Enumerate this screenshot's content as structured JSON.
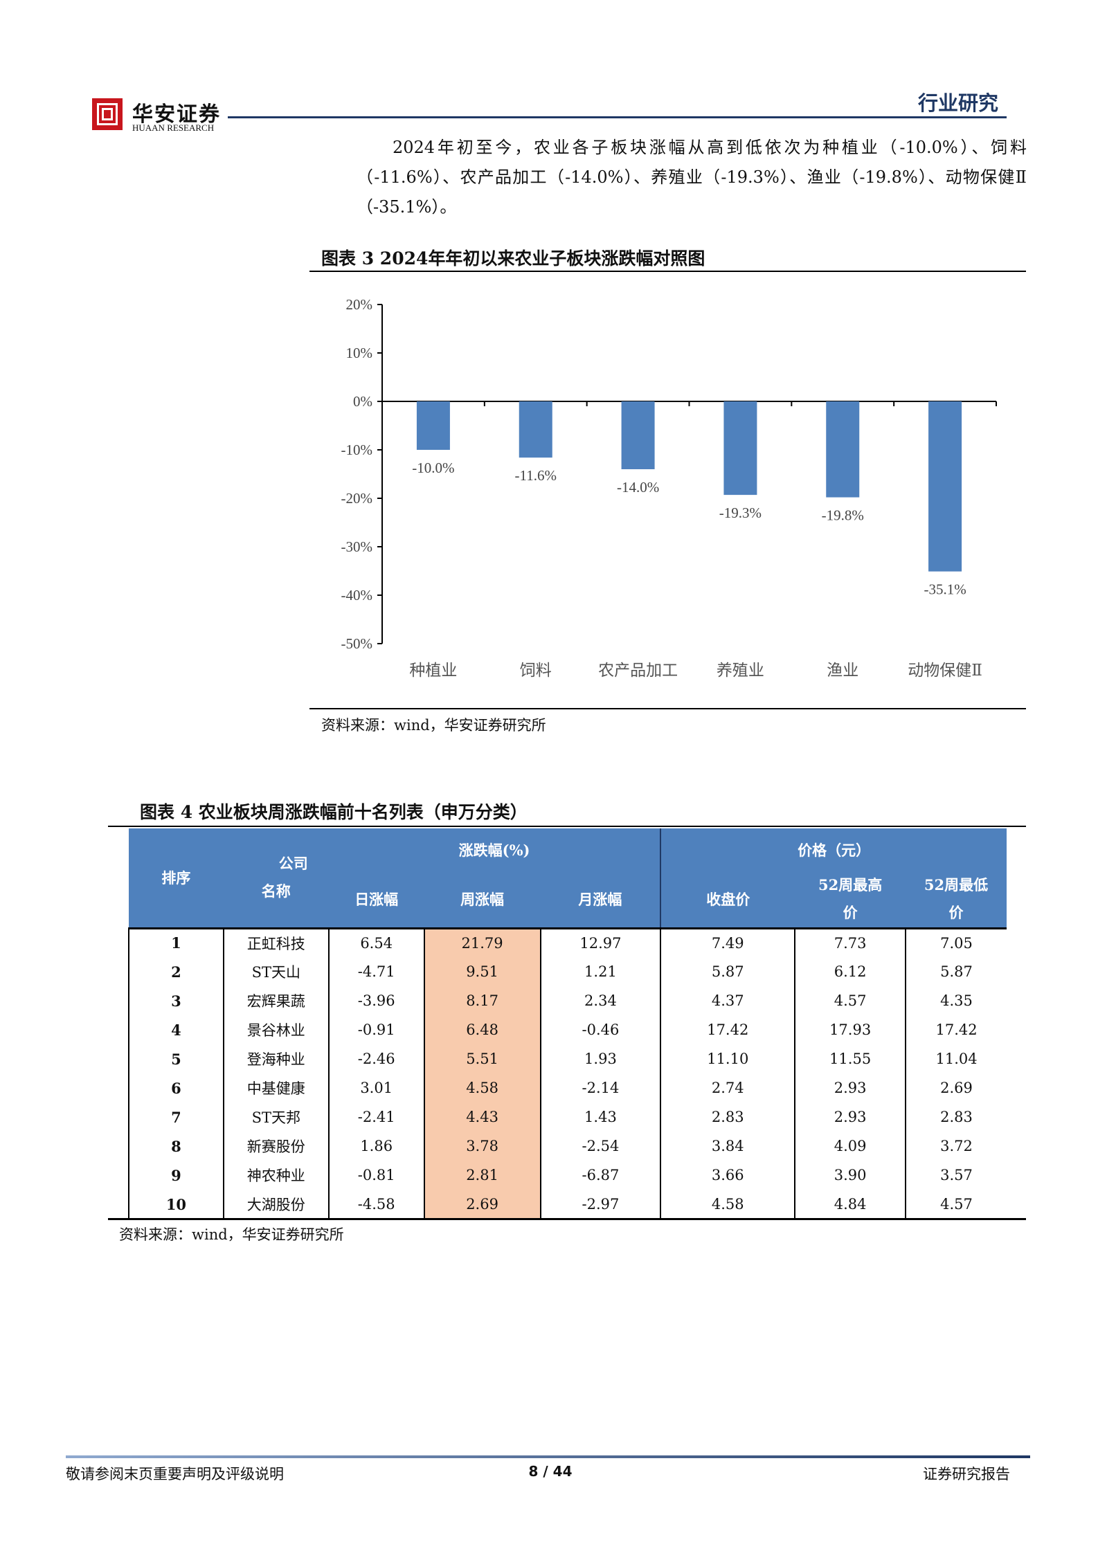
{
  "header": {
    "logo_cn": "华安证券",
    "logo_en": "HUAAN RESEARCH",
    "section": "行业研究"
  },
  "paragraph": "2024年初至今，农业各子板块涨幅从高到低依次为种植业（-10.0%）、饲料（-11.6%）、农产品加工（-14.0%）、养殖业（-19.3%）、渔业（-19.8%）、动物保健Ⅱ（-35.1%）。",
  "figure3": {
    "title": "图表 3 2024年年初以来农业子板块涨跌幅对照图",
    "source": "资料来源：wind，华安证券研究所"
  },
  "chart_data": {
    "type": "bar",
    "title": "",
    "categories": [
      "种植业",
      "饲料",
      "农产品加工",
      "养殖业",
      "渔业",
      "动物保健Ⅱ"
    ],
    "values": [
      -10.0,
      -11.6,
      -14.0,
      -19.3,
      -19.8,
      -35.1
    ],
    "data_labels": [
      "-10.0%",
      "-11.6%",
      "-14.0%",
      "-19.3%",
      "-19.8%",
      "-35.1%"
    ],
    "ylim": [
      -50,
      20
    ],
    "yticks": [
      "20%",
      "10%",
      "0%",
      "-10%",
      "-20%",
      "-30%",
      "-40%",
      "-50%"
    ],
    "ytick_values": [
      20,
      10,
      0,
      -10,
      -20,
      -30,
      -40,
      -50
    ],
    "grid": false,
    "bar_color": "#4f81bd"
  },
  "table4": {
    "title": "图表 4 农业板块周涨跌幅前十名列表（申万分类）",
    "headers": {
      "rank": "排序",
      "company_1": "公司",
      "company_2": "名称",
      "change_group": "涨跌幅(%)",
      "price_group": "价格（元）",
      "daily": "日涨幅",
      "weekly": "周涨幅",
      "monthly": "月涨幅",
      "close": "收盘价",
      "high52_1": "52周最高",
      "high52_2": "价",
      "low52_1": "52周最低",
      "low52_2": "价"
    },
    "rows": [
      [
        "1",
        "正虹科技",
        "6.54",
        "21.79",
        "12.97",
        "7.49",
        "7.73",
        "7.05"
      ],
      [
        "2",
        "ST天山",
        "-4.71",
        "9.51",
        "1.21",
        "5.87",
        "6.12",
        "5.87"
      ],
      [
        "3",
        "宏辉果蔬",
        "-3.96",
        "8.17",
        "2.34",
        "4.37",
        "4.57",
        "4.35"
      ],
      [
        "4",
        "景谷林业",
        "-0.91",
        "6.48",
        "-0.46",
        "17.42",
        "17.93",
        "17.42"
      ],
      [
        "5",
        "登海种业",
        "-2.46",
        "5.51",
        "1.93",
        "11.10",
        "11.55",
        "11.04"
      ],
      [
        "6",
        "中基健康",
        "3.01",
        "4.58",
        "-2.14",
        "2.74",
        "2.93",
        "2.69"
      ],
      [
        "7",
        "ST天邦",
        "-2.41",
        "4.43",
        "1.43",
        "2.83",
        "2.93",
        "2.83"
      ],
      [
        "8",
        "新赛股份",
        "1.86",
        "3.78",
        "-2.54",
        "3.84",
        "4.09",
        "3.72"
      ],
      [
        "9",
        "神农种业",
        "-0.81",
        "2.81",
        "-6.87",
        "3.66",
        "3.90",
        "3.57"
      ],
      [
        "10",
        "大湖股份",
        "-4.58",
        "2.69",
        "-2.97",
        "4.58",
        "4.84",
        "4.57"
      ]
    ],
    "highlight_color": "#f8cbad",
    "header_color": "#4f81bd",
    "source": "资料来源：wind，华安证券研究所"
  },
  "footer": {
    "disclaimer": "敬请参阅末页重要声明及评级说明",
    "page": "8 / 44",
    "report_type": "证券研究报告"
  }
}
